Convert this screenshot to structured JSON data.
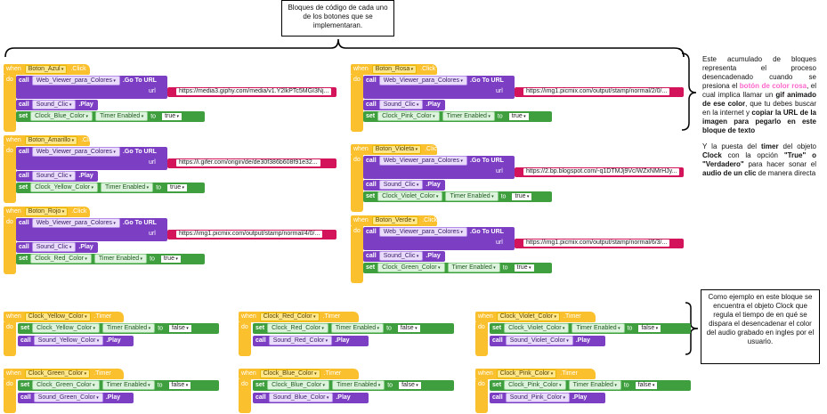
{
  "notes": {
    "top": "Bloques de código de cada uno de los botones que se implementaran.",
    "right_top_parts": [
      {
        "t": "Este acumulado de bloques representa el proceso desencadenado cuando se presiona el ",
        "s": "n"
      },
      {
        "t": "botón de color rosa",
        "s": "pink"
      },
      {
        "t": ", el cual implica llamar un ",
        "s": "n"
      },
      {
        "t": "gif animado de ese color",
        "s": "b"
      },
      {
        "t": ", que tu debes buscar en la internet y ",
        "s": "n"
      },
      {
        "t": "copiar la URL de la imagen para pegarlo en este bloque de texto",
        "s": "b"
      }
    ],
    "right_mid_parts": [
      {
        "t": "Y la puesta del ",
        "s": "n"
      },
      {
        "t": "timer",
        "s": "b"
      },
      {
        "t": " del objeto ",
        "s": "n"
      },
      {
        "t": "Clock",
        "s": "b"
      },
      {
        "t": " con la opción ",
        "s": "n"
      },
      {
        "t": "\"True\" o \"Verdadero\"",
        "s": "b"
      },
      {
        "t": " para hacer sonar el ",
        "s": "n"
      },
      {
        "t": "audio de un clic",
        "s": "b"
      },
      {
        "t": " de manera directa",
        "s": "n"
      }
    ],
    "right_bottom": "Como ejemplo en este bloque se encuentra el objeto Clock que regula el tiempo de en qué se dispara el desencadenar el color del audio grabado en ingles por el usuario."
  },
  "labels": {
    "when": "when",
    "do": "do",
    "click": ".Click",
    "timer": ".Timer",
    "call": "call",
    "set": "set",
    "goto": ".Go To URL",
    "url": "url",
    "play": ".Play",
    "timer_enabled": "Timer Enabled",
    "to": "to",
    "true": "true",
    "false": "false",
    "web_viewer": "Web_Viewer_para_Colores",
    "sound_clic": "Sound_Clic"
  },
  "button_events": [
    {
      "button": "Boton_Azul",
      "url": "https://media3.giphy.com/media/v1.Y2lkPTc5MGI3Nj...",
      "clock": "Clock_Blue_Color"
    },
    {
      "button": "Boton_Amarillo",
      "url": "https://i.gifer.com/origin/de/de30f386b608f91e32...",
      "clock": "Clock_Yellow_Color"
    },
    {
      "button": "Boton_Rojo",
      "url": "https://img1.picmix.com/output/stamp/normal/4/0/...",
      "clock": "Clock_Red_Color"
    },
    {
      "button": "Boton_Rosa",
      "url": "https://img1.picmix.com/output/stamp/normal/2/0/...",
      "clock": "Clock_Pink_Color"
    },
    {
      "button": "Boton_Violeta",
      "url": "https://2.bp.blogspot.com/-q1DTMJj9Vc/WZxNMrHJy...",
      "clock": "Clock_Violet_Color"
    },
    {
      "button": "Boton_Verde",
      "url": "https://img1.picmix.com/output/stamp/normal/6/3/...",
      "clock": "Clock_Green_Color"
    }
  ],
  "timer_events": [
    {
      "clock": "Clock_Yellow_Color",
      "sound": "Sound_Yellow_Color"
    },
    {
      "clock": "Clock_Red_Color",
      "sound": "Sound_Red_Color"
    },
    {
      "clock": "Clock_Violet_Color",
      "sound": "Sound_Violet_Color"
    },
    {
      "clock": "Clock_Green_Color",
      "sound": "Sound_Green_Color"
    },
    {
      "clock": "Clock_Blue_Color",
      "sound": "Sound_Blue_Color"
    },
    {
      "clock": "Clock_Pink_Color",
      "sound": "Sound_Pink_Color"
    }
  ],
  "colors": {
    "event": "#fbc02d",
    "call": "#7c3fc4",
    "set": "#3f9f3f",
    "url": "#d4145a",
    "pink_text": "#ff66cc"
  }
}
